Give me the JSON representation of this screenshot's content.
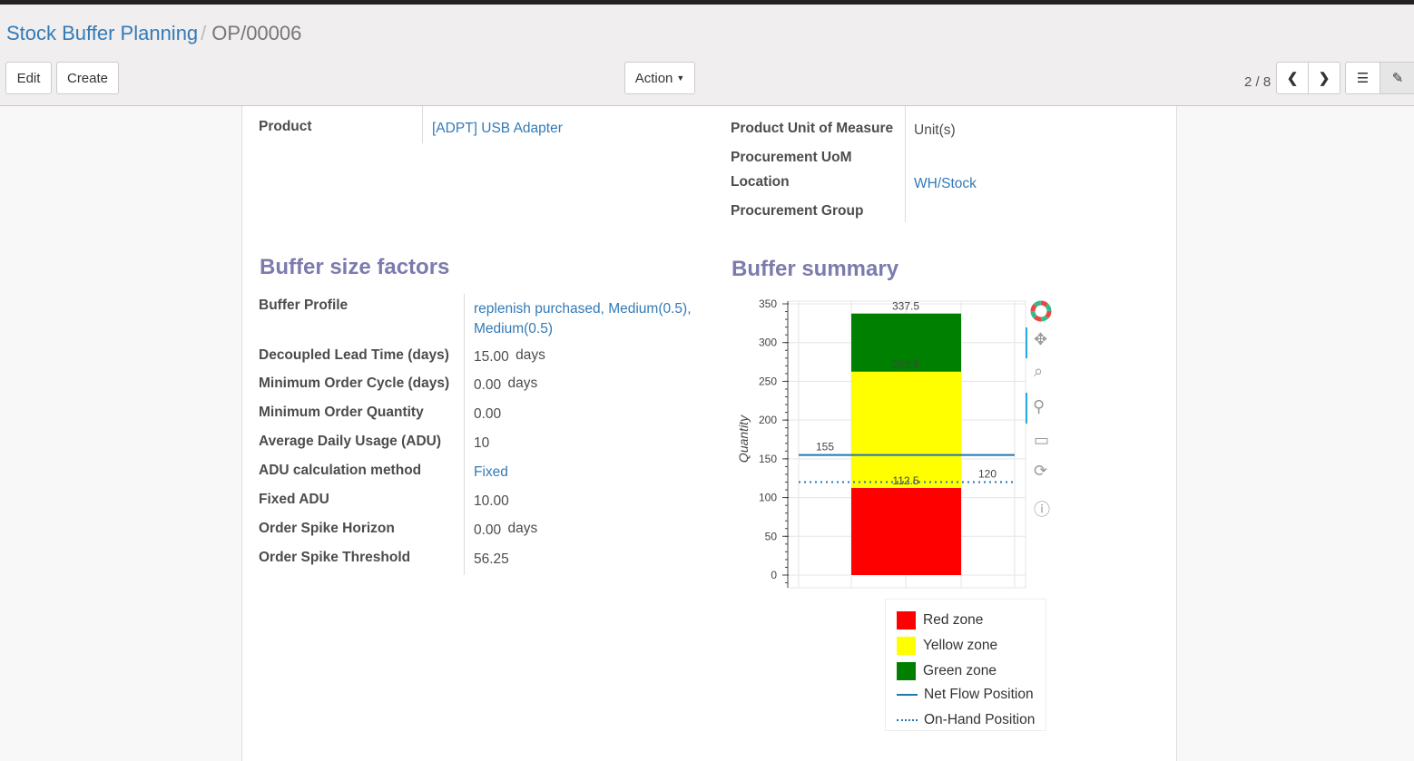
{
  "breadcrumb": {
    "parent": "Stock Buffer Planning",
    "current": "OP/00006"
  },
  "toolbar": {
    "edit": "Edit",
    "create": "Create",
    "action": "Action",
    "pager": "2 / 8"
  },
  "fields_top": [
    {
      "label": "Product",
      "value": "[ADPT] USB Adapter"
    },
    {
      "label": "Product Unit of Measure",
      "value": "Unit(s)"
    },
    {
      "label": "Procurement UoM",
      "value": ""
    },
    {
      "label": "Location",
      "value": "WH/Stock"
    },
    {
      "label": "Procurement Group",
      "value": ""
    }
  ],
  "factors": {
    "title": "Buffer size factors",
    "rows": [
      {
        "label": "Buffer Profile",
        "value": "replenish purchased, Medium(0.5), Medium(0.5)",
        "unit": ""
      },
      {
        "label": "Decoupled Lead Time (days)",
        "value": "15.00",
        "unit": "days"
      },
      {
        "label": "Minimum Order Cycle (days)",
        "value": "0.00",
        "unit": "days"
      },
      {
        "label": "Minimum Order Quantity",
        "value": "0.00",
        "unit": ""
      },
      {
        "label": "Average Daily Usage (ADU)",
        "value": "10",
        "unit": ""
      },
      {
        "label": "ADU calculation method",
        "value": "Fixed",
        "unit": ""
      },
      {
        "label": "Fixed ADU",
        "value": "10.00",
        "unit": ""
      },
      {
        "label": "Order Spike Horizon",
        "value": "0.00",
        "unit": "days"
      },
      {
        "label": "Order Spike Threshold",
        "value": "56.25",
        "unit": ""
      }
    ]
  },
  "summary": {
    "title": "Buffer summary"
  },
  "chart_data": {
    "type": "bar",
    "ylabel": "Quantity",
    "ylim": [
      0,
      350
    ],
    "yticks": [
      0,
      50,
      100,
      150,
      200,
      250,
      300,
      350
    ],
    "grid": true,
    "stacked_zones": [
      {
        "name": "Red zone",
        "from": 0,
        "to": 112.5,
        "color": "#ff0000",
        "label": "112.5"
      },
      {
        "name": "Yellow zone",
        "from": 112.5,
        "to": 262.5,
        "color": "#ffff00",
        "label": "262.5"
      },
      {
        "name": "Green zone",
        "from": 262.5,
        "to": 337.5,
        "color": "#008000",
        "label": "337.5"
      }
    ],
    "lines": [
      {
        "name": "Net Flow Position",
        "value": 155,
        "label": "155",
        "style": "solid",
        "color": "#1f77b4"
      },
      {
        "name": "On-Hand Position",
        "value": 120,
        "label": "120",
        "style": "dotted",
        "color": "#1f77b4"
      }
    ],
    "legend_position": "bottom"
  }
}
